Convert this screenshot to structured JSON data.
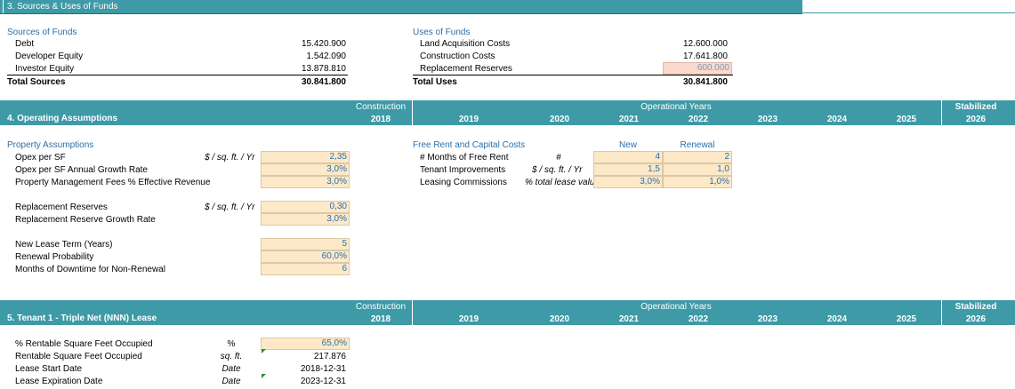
{
  "sec3": {
    "title": "3. Sources & Uses of Funds",
    "sources_title": "Sources of Funds",
    "sources": [
      {
        "label": "Debt",
        "value": "15.420.900"
      },
      {
        "label": "Developer Equity",
        "value": "1.542.090"
      },
      {
        "label": "Investor Equity",
        "value": "13.878.810"
      }
    ],
    "total_sources_label": "Total Sources",
    "total_sources_value": "30.841.800",
    "uses_title": "Uses of Funds",
    "uses": [
      {
        "label": "Land Acquisition Costs",
        "value": "12.600.000"
      },
      {
        "label": "Construction Costs",
        "value": "17.641.800"
      },
      {
        "label": "Replacement Reserves",
        "value": "600.000"
      }
    ],
    "total_uses_label": "Total Uses",
    "total_uses_value": "30.841.800"
  },
  "timeline": {
    "construction": "Construction",
    "operational": "Operational Years",
    "stabilized": "Stabilized",
    "years": [
      "2018",
      "2019",
      "2020",
      "2021",
      "2022",
      "2023",
      "2024",
      "2025",
      "2026"
    ]
  },
  "sec4": {
    "title": "4. Operating Assumptions",
    "property_title": "Property Assumptions",
    "opex_label": "Opex per SF",
    "opex_unit": "$ / sq. ft. / Yr",
    "opex_value": "2,35",
    "opex_growth_label": "Opex per SF Annual Growth Rate",
    "opex_growth_value": "3,0%",
    "pm_fees_label": "Property Management Fees % Effective Revenue",
    "pm_fees_value": "3,0%",
    "rr_label": "Replacement Reserves",
    "rr_unit": "$ / sq. ft. / Yr",
    "rr_value": "0,30",
    "rr_growth_label": "Replacement Reserve Growth Rate",
    "rr_growth_value": "3,0%",
    "lease_term_label": "New Lease Term (Years)",
    "lease_term_value": "5",
    "renewal_prob_label": "Renewal Probability",
    "renewal_prob_value": "60,0%",
    "downtime_label": "Months of Downtime for Non-Renewal",
    "downtime_value": "6",
    "free_rent_title": "Free Rent and Capital Costs",
    "col_new": "New",
    "col_renewal": "Renewal",
    "fr_rows": [
      {
        "label": "# Months of Free Rent",
        "unit": "#",
        "new": "4",
        "renewal": "2"
      },
      {
        "label": "Tenant Improvements",
        "unit": "$ / sq. ft. / Yr",
        "new": "1,5",
        "renewal": "1,0"
      },
      {
        "label": "Leasing Commissions",
        "unit": "% total lease value",
        "new": "3,0%",
        "renewal": "1,0%"
      }
    ]
  },
  "sec5": {
    "title": "5. Tenant 1 - Triple Net (NNN) Lease",
    "rows": [
      {
        "label": "% Rentable Square Feet Occupied",
        "unit": "%",
        "value": "65,0%"
      },
      {
        "label": "Rentable Square Feet Occupied",
        "unit": "sq. ft.",
        "value": "217.876"
      },
      {
        "label": "Lease Start Date",
        "unit": "Date",
        "value": "2018-12-31"
      },
      {
        "label": "Lease Expiration Date",
        "unit": "Date",
        "value": "2023-12-31"
      }
    ]
  }
}
